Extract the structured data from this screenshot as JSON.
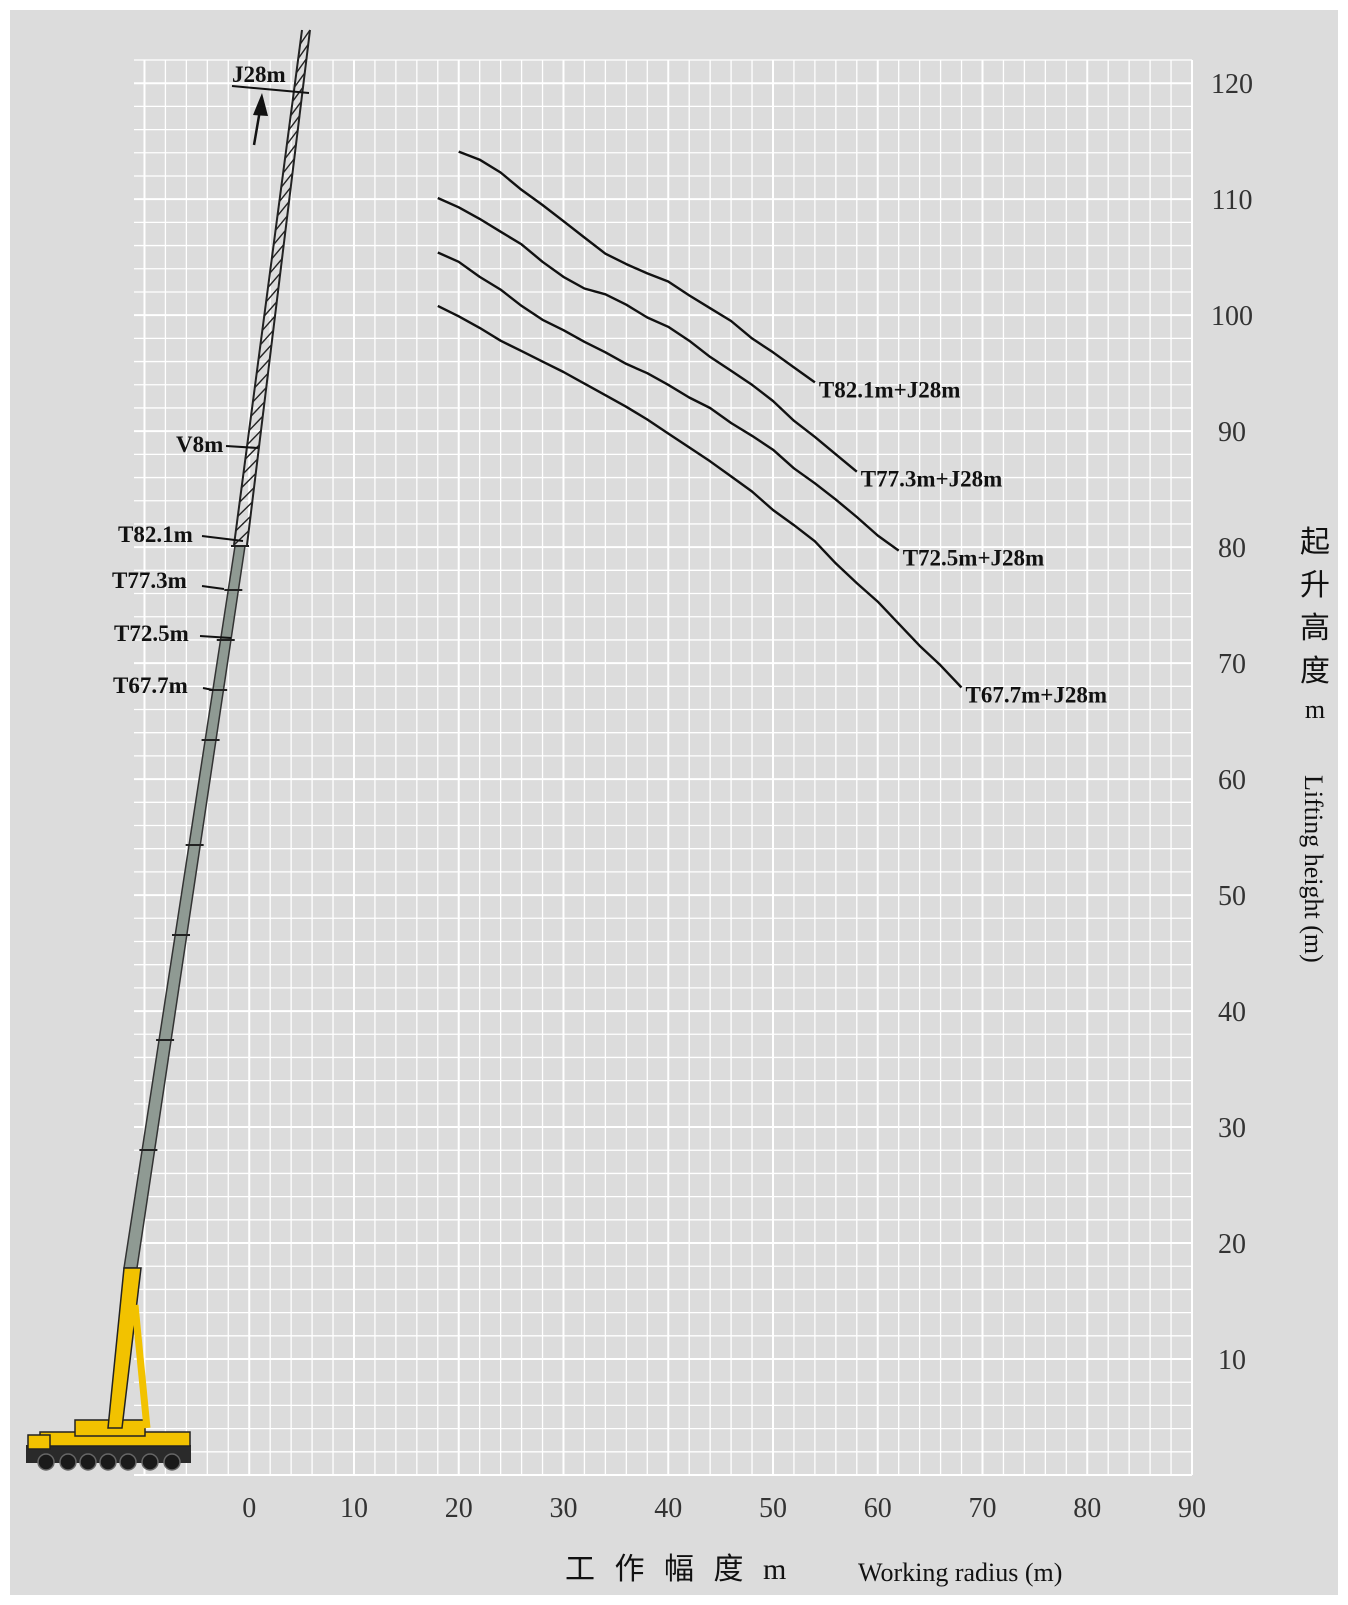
{
  "colors": {
    "background": "#dcdcdc",
    "grid": "#ffffff",
    "curve": "#111111",
    "boom": "#8f9a93",
    "crane_body": "#f2c200"
  },
  "chart_data": {
    "type": "line",
    "title": "",
    "xlabel_cn": "工 作 幅 度 m",
    "xlabel_en": "Working radius (m)",
    "ylabel_cn": [
      "起",
      "升",
      "高",
      "度",
      "m"
    ],
    "ylabel_en": "Lifting height (m)",
    "xlim": [
      -11,
      90
    ],
    "ylim": [
      0,
      122
    ],
    "x_ticks": [
      0,
      10,
      20,
      30,
      40,
      50,
      60,
      70,
      80,
      90
    ],
    "y_ticks": [
      10,
      20,
      30,
      40,
      50,
      60,
      70,
      80,
      90,
      100,
      110,
      120
    ],
    "y_axis_side": "right",
    "grid": true,
    "grid_minor_step": 2,
    "series": [
      {
        "name": "T82.1m+J28m",
        "x": [
          20,
          22,
          24,
          26,
          28,
          30,
          32,
          34,
          36,
          38,
          40,
          42,
          44,
          46,
          48,
          50,
          52,
          54
        ],
        "y": [
          114.1,
          113.4,
          112.3,
          110.8,
          109.5,
          108.1,
          106.7,
          105.3,
          104.4,
          103.6,
          102.9,
          101.7,
          100.6,
          99.5,
          98.0,
          96.8,
          95.5,
          94.2
        ]
      },
      {
        "name": "T77.3m+J28m",
        "x": [
          18,
          20,
          22,
          24,
          26,
          28,
          30,
          32,
          34,
          36,
          38,
          40,
          42,
          44,
          46,
          48,
          50,
          52,
          54,
          56,
          58
        ],
        "y": [
          110.1,
          109.3,
          108.3,
          107.2,
          106.1,
          104.6,
          103.3,
          102.3,
          101.8,
          100.9,
          99.8,
          99.0,
          97.8,
          96.4,
          95.2,
          94.0,
          92.6,
          90.9,
          89.5,
          88.0,
          86.5
        ]
      },
      {
        "name": "T72.5m+J28m",
        "x": [
          18,
          20,
          22,
          24,
          26,
          28,
          30,
          32,
          34,
          36,
          38,
          40,
          42,
          44,
          46,
          48,
          50,
          52,
          54,
          56,
          58,
          60,
          62
        ],
        "y": [
          105.4,
          104.6,
          103.3,
          102.2,
          100.8,
          99.6,
          98.7,
          97.7,
          96.8,
          95.8,
          95.0,
          94.0,
          92.9,
          92.0,
          90.7,
          89.6,
          88.4,
          86.8,
          85.5,
          84.1,
          82.6,
          81.0,
          79.7
        ]
      },
      {
        "name": "T67.7m+J28m",
        "x": [
          18,
          20,
          22,
          24,
          26,
          28,
          30,
          32,
          34,
          36,
          38,
          40,
          42,
          44,
          46,
          48,
          50,
          52,
          54,
          56,
          58,
          60,
          62,
          64,
          66,
          68
        ],
        "y": [
          100.8,
          99.9,
          98.9,
          97.8,
          96.9,
          96.0,
          95.1,
          94.1,
          93.1,
          92.1,
          91.0,
          89.8,
          88.6,
          87.4,
          86.1,
          84.8,
          83.2,
          81.9,
          80.5,
          78.6,
          76.9,
          75.3,
          73.4,
          71.5,
          69.8,
          67.9
        ]
      }
    ],
    "annotations": [
      "J28m",
      "V8m",
      "T82.1m",
      "T77.3m",
      "T72.5m",
      "T67.7m"
    ]
  }
}
